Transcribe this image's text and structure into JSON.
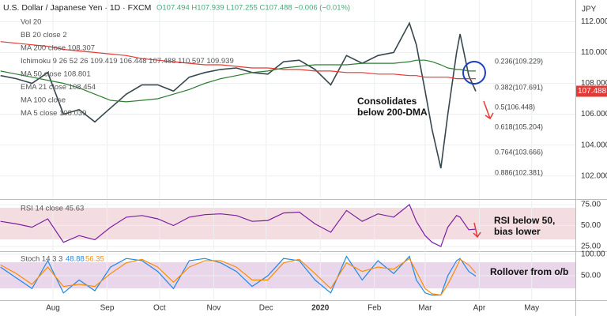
{
  "chart_data": [
    {
      "type": "line",
      "title": "U.S. Dollar / Japanese Yen · 1D · FXCM",
      "ohlc": "O107.494 H107.939 L107.255 C107.488 −0.006 (−0.01%)",
      "currency": "JPY",
      "legend": [
        "Vol 20",
        "BB 20 close 2",
        "MA 200 close 108.307",
        "Ichimoku 9 26 52 26 109.419 106.448 107.488 110.597 109.939",
        "MA 50 close 108.801",
        "EMA 21 close 108.454",
        "MA 100 close",
        "MA 5 close 108.039"
      ],
      "annotations": [
        "Consolidates",
        "below 200-DMA",
        "0.236(109.229)",
        "0.382(107.691)",
        "0.5(106.448)",
        "0.618(105.204)",
        "0.764(103.666)",
        "0.886(102.381)"
      ],
      "x": [
        1,
        10,
        19,
        28,
        37,
        46,
        55,
        64,
        73,
        82,
        91,
        100,
        109,
        118,
        127,
        136,
        145,
        154,
        163,
        172,
        181,
        190,
        199,
        208,
        217,
        226,
        235,
        239,
        244,
        248,
        253,
        257,
        262,
        264,
        269,
        273
      ],
      "series": [
        {
          "color": "#37474f",
          "values": [
            108.5,
            108.3,
            108.0,
            108.7,
            106.0,
            106.3,
            105.5,
            106.4,
            107.3,
            107.9,
            107.9,
            107.5,
            108.4,
            108.7,
            108.9,
            109.0,
            108.7,
            108.6,
            109.4,
            109.5,
            108.9,
            107.9,
            109.8,
            109.3,
            109.8,
            110.0,
            111.9,
            110.5,
            107.5,
            105.0,
            102.5,
            106.0,
            110.0,
            111.2,
            108.5,
            107.488
          ]
        },
        {
          "color": "#e53935",
          "values": [
            110.7,
            110.6,
            110.5,
            110.4,
            110.2,
            110.1,
            110.0,
            109.9,
            109.8,
            109.6,
            109.5,
            109.4,
            109.3,
            109.2,
            109.2,
            109.1,
            109.0,
            109.0,
            108.9,
            108.9,
            108.8,
            108.8,
            108.7,
            108.7,
            108.6,
            108.6,
            108.5,
            108.5,
            108.4,
            108.4,
            108.4,
            108.4,
            108.3,
            108.3,
            108.3,
            108.3
          ]
        },
        {
          "color": "#2e7d32",
          "values": [
            108.8,
            108.6,
            108.4,
            108.2,
            108.0,
            107.7,
            107.3,
            106.9,
            106.8,
            106.9,
            107.0,
            107.3,
            107.6,
            108.0,
            108.3,
            108.5,
            108.7,
            108.8,
            109.0,
            109.1,
            109.2,
            109.2,
            109.2,
            109.3,
            109.3,
            109.3,
            109.4,
            109.5,
            109.5,
            109.4,
            109.2,
            109.0,
            108.9,
            108.9,
            108.8,
            108.8
          ]
        }
      ],
      "xlim": [
        0.7,
        330
      ],
      "xticks": [
        {
          "value": 31,
          "label": "Aug"
        },
        {
          "value": 62,
          "label": "Sep"
        },
        {
          "value": 92,
          "label": "Oct"
        },
        {
          "value": 123,
          "label": "Nov"
        },
        {
          "value": 153,
          "label": "Dec"
        },
        {
          "value": 184,
          "label": "2020"
        },
        {
          "value": 215,
          "label": "Feb"
        },
        {
          "value": 244,
          "label": "Mar"
        },
        {
          "value": 275,
          "label": "Apr"
        },
        {
          "value": 305,
          "label": "May"
        }
      ],
      "ylim": [
        100.5,
        113.4
      ],
      "yticks": [
        {
          "value": 102,
          "label": "102.000"
        },
        {
          "value": 104,
          "label": "104.000"
        },
        {
          "value": 106,
          "label": "106.000"
        },
        {
          "value": 108,
          "label": "108.000"
        },
        {
          "value": 110,
          "label": "110.000"
        },
        {
          "value": 112,
          "label": "112.000"
        }
      ],
      "grid": true
    },
    {
      "type": "line",
      "legend": [
        "RSI 14 close 45.63"
      ],
      "annotations": [
        "RSI below 50,",
        "bias lower"
      ],
      "x": [
        1,
        10,
        19,
        28,
        37,
        46,
        55,
        64,
        73,
        82,
        91,
        100,
        109,
        118,
        127,
        136,
        145,
        154,
        163,
        172,
        181,
        190,
        199,
        208,
        217,
        226,
        235,
        239,
        244,
        248,
        253,
        257,
        262,
        264,
        269,
        273
      ],
      "series": [
        {
          "color": "#7b1fa2",
          "values": [
            55,
            52,
            48,
            58,
            30,
            38,
            33,
            48,
            60,
            62,
            58,
            50,
            60,
            63,
            64,
            62,
            55,
            56,
            65,
            66,
            52,
            42,
            68,
            55,
            64,
            60,
            75,
            55,
            38,
            30,
            25,
            48,
            62,
            60,
            45,
            45.63
          ]
        }
      ],
      "xlim": [
        0.7,
        330
      ],
      "ylim": [
        20.3,
        79.7
      ],
      "yticks": [
        {
          "value": 25,
          "label": "25.00"
        },
        {
          "value": 50,
          "label": "50.00"
        },
        {
          "value": 75,
          "label": "75.00"
        }
      ],
      "grid": true
    },
    {
      "type": "line",
      "legend": [
        "Stoch 14 3 3",
        "48.88",
        "56.35"
      ],
      "annotations": [
        "Rollover from o/b"
      ],
      "x": [
        1,
        10,
        19,
        28,
        37,
        46,
        55,
        64,
        73,
        82,
        91,
        100,
        109,
        118,
        127,
        136,
        145,
        154,
        163,
        172,
        181,
        190,
        199,
        208,
        217,
        226,
        235,
        239,
        244,
        248,
        253,
        257,
        262,
        264,
        269,
        273
      ],
      "series": [
        {
          "color": "#1e88e5",
          "values": [
            70,
            45,
            20,
            85,
            10,
            40,
            15,
            70,
            90,
            85,
            60,
            20,
            85,
            90,
            80,
            60,
            25,
            50,
            90,
            85,
            40,
            10,
            95,
            40,
            85,
            55,
            95,
            40,
            10,
            5,
            5,
            50,
            85,
            90,
            60,
            48.88
          ]
        },
        {
          "color": "#fb8c00",
          "values": [
            75,
            55,
            30,
            70,
            25,
            30,
            25,
            55,
            80,
            88,
            70,
            35,
            70,
            85,
            85,
            70,
            40,
            40,
            80,
            88,
            55,
            20,
            80,
            60,
            70,
            65,
            90,
            60,
            20,
            8,
            5,
            30,
            70,
            88,
            75,
            56.35
          ]
        }
      ],
      "xlim": [
        0.7,
        330
      ],
      "ylim": [
        -7,
        107
      ],
      "yticks": [
        {
          "value": 50,
          "label": "50.00"
        },
        {
          "value": 100,
          "label": "100.00"
        }
      ],
      "grid": true
    }
  ]
}
